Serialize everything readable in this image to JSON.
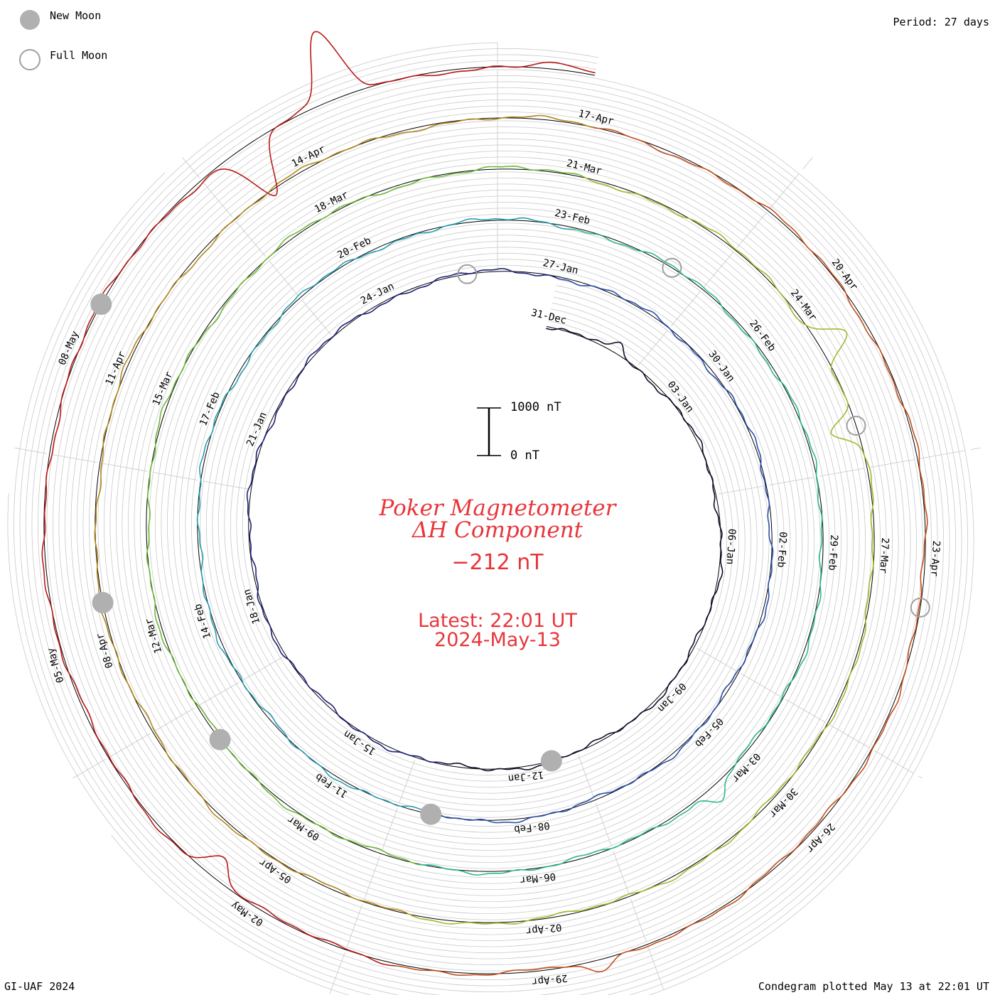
{
  "legend": {
    "new_moon": "New Moon",
    "full_moon": "Full Moon"
  },
  "period_label": "Period: 27 days",
  "credit": "GI-UAF 2024",
  "plotted_label": "Condegram plotted May 13 at 22:01 UT",
  "title_line1": "Poker Magnetometer",
  "title_line2": "ΔH Component",
  "current_value": "−212 nT",
  "latest_label": "Latest: 22:01 UT",
  "latest_date": "2024-May-13",
  "scale": {
    "top": "1000 nT",
    "bottom": "0 nT"
  },
  "colors": {
    "title": "#e8353b",
    "moon_fill": "#b0b0b0",
    "grid": "#c8c8c8",
    "lap_colors": [
      "#0d0d2a",
      "#1d1f78",
      "#2c4fa8",
      "#2b9eb0",
      "#2fb98a",
      "#6db73a",
      "#a9b52b",
      "#b2861c",
      "#c2501d",
      "#b81a17"
    ]
  },
  "chart_data": {
    "type": "line",
    "plot_kind": "condegram spiral (polar time series)",
    "title": "Poker Magnetometer ΔH Component",
    "period_days": 27,
    "units": "nT",
    "scale_bar": [
      0,
      1000
    ],
    "start": "2023-12-31",
    "end": "2024-05-13 22:01",
    "date_labels": [
      "31-Dec",
      "03-Jan",
      "06-Jan",
      "09-Jan",
      "12-Jan",
      "15-Jan",
      "18-Jan",
      "21-Jan",
      "24-Jan",
      "27-Jan",
      "30-Jan",
      "02-Feb",
      "05-Feb",
      "08-Feb",
      "11-Feb",
      "14-Feb",
      "17-Feb",
      "20-Feb",
      "23-Feb",
      "26-Feb",
      "29-Feb",
      "03-Mar",
      "06-Mar",
      "09-Mar",
      "12-Mar",
      "15-Mar",
      "18-Mar",
      "21-Mar",
      "24-Mar",
      "27-Mar",
      "30-Mar",
      "02-Apr",
      "05-Apr",
      "08-Apr",
      "11-Apr",
      "14-Apr",
      "17-Apr",
      "20-Apr",
      "23-Apr",
      "26-Apr",
      "29-Apr",
      "02-May",
      "05-May",
      "08-May"
    ],
    "new_moons": [
      "2024-01-11",
      "2024-02-09",
      "2024-03-10",
      "2024-04-08",
      "2024-05-08"
    ],
    "full_moons": [
      "2024-01-25",
      "2024-02-24",
      "2024-03-25",
      "2024-04-23"
    ],
    "events": [
      {
        "date": "2024-01-01",
        "value": -300
      },
      {
        "date": "2024-03-03",
        "value": -450
      },
      {
        "date": "2024-03-24",
        "value": -900
      },
      {
        "date": "2024-03-25",
        "value": 800
      },
      {
        "date": "2024-04-28",
        "value": -400
      },
      {
        "date": "2024-05-02",
        "value": 700
      },
      {
        "date": "2024-05-10",
        "value": 1700
      },
      {
        "date": "2024-05-11",
        "value": -2000
      },
      {
        "date": "2024-05-13",
        "value": -212
      }
    ]
  }
}
